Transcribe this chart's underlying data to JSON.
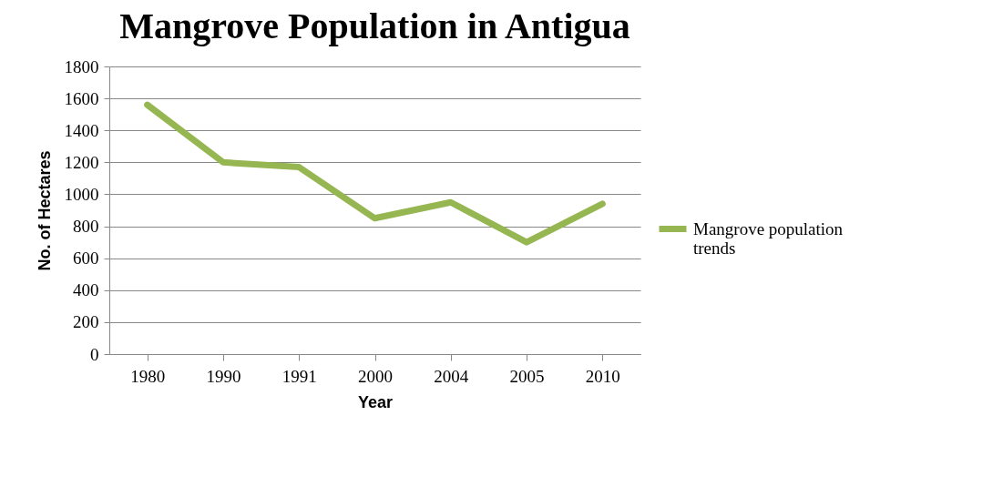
{
  "chart_data": {
    "type": "line",
    "title": "Mangrove Population in Antigua",
    "xlabel": "Year",
    "ylabel": "No. of Hectares",
    "categories": [
      "1980",
      "1990",
      "1991",
      "2000",
      "2004",
      "2005",
      "2010"
    ],
    "series": [
      {
        "name": "Mangrove population trends",
        "color": "#95b651",
        "values": [
          1560,
          1200,
          1170,
          850,
          950,
          700,
          940
        ]
      }
    ],
    "ylim": [
      0,
      1800
    ],
    "yticks": [
      0,
      200,
      400,
      600,
      800,
      1000,
      1200,
      1400,
      1600,
      1800
    ],
    "grid": "y",
    "legend": "right",
    "marker": "none",
    "line_style": "solid"
  }
}
